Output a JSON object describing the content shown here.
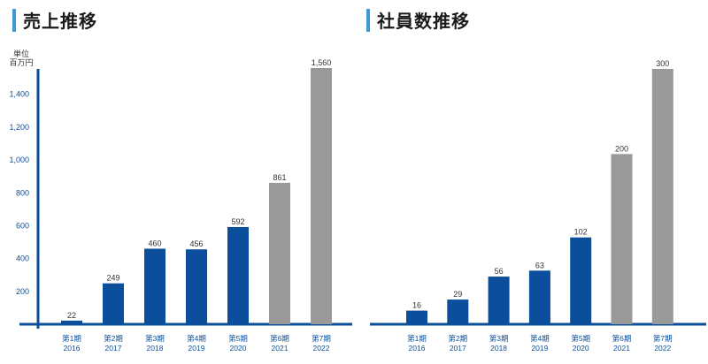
{
  "colors": {
    "accent": "#3c9ad6",
    "bar_blue": "#0b4f9c",
    "bar_gray": "#999999",
    "axis": "#0b4f9c",
    "text": "#0b4f9c"
  },
  "chart_data": [
    {
      "type": "bar",
      "title": "売上推移",
      "unit_label_line1": "単位",
      "unit_label_line2": "百万円",
      "categories": [
        "第1期",
        "第2期",
        "第3期",
        "第4期",
        "第5期",
        "第6期",
        "第7期"
      ],
      "years": [
        "2016",
        "2017",
        "2018",
        "2019",
        "2020",
        "2021",
        "2022"
      ],
      "values": [
        22,
        249,
        460,
        456,
        592,
        861,
        1560
      ],
      "value_labels": [
        "22",
        "249",
        "460",
        "456",
        "592",
        "861",
        "1,560"
      ],
      "bar_colors": [
        "blue",
        "blue",
        "blue",
        "blue",
        "blue",
        "gray",
        "gray"
      ],
      "yticks": [
        200,
        400,
        600,
        800,
        1000,
        1200,
        1400
      ],
      "ytick_labels": [
        "200",
        "400",
        "600",
        "800",
        "1,000",
        "1,200",
        "1,400"
      ],
      "ylim": [
        0,
        1560
      ],
      "grid": false,
      "legend": "none"
    },
    {
      "type": "bar",
      "title": "社員数推移",
      "categories": [
        "第1期",
        "第2期",
        "第3期",
        "第4期",
        "第5期",
        "第6期",
        "第7期"
      ],
      "years": [
        "2016",
        "2017",
        "2018",
        "2019",
        "2020",
        "2021",
        "2022"
      ],
      "values": [
        16,
        29,
        56,
        63,
        102,
        200,
        300
      ],
      "value_labels": [
        "16",
        "29",
        "56",
        "63",
        "102",
        "200",
        "300"
      ],
      "bar_colors": [
        "blue",
        "blue",
        "blue",
        "blue",
        "blue",
        "gray",
        "gray"
      ],
      "grid": false,
      "legend": "none"
    }
  ]
}
